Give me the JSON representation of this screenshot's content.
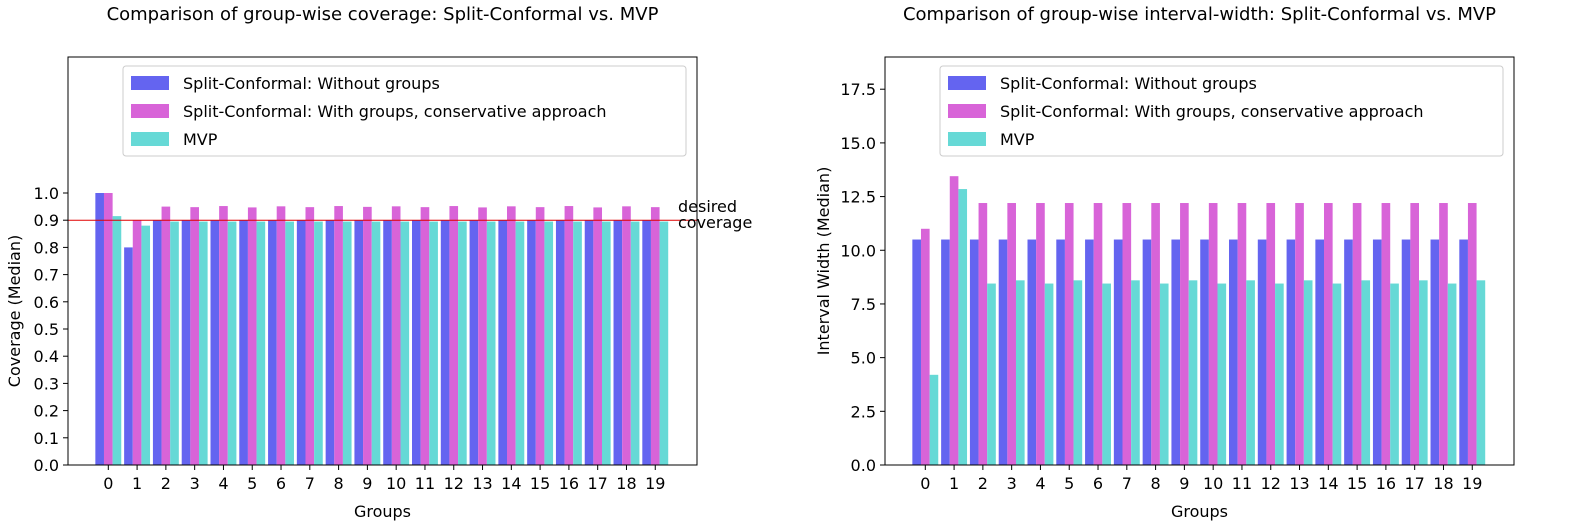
{
  "chart_data": [
    {
      "type": "bar",
      "title": "Comparison of group-wise coverage: Split-Conformal vs. MVP",
      "xlabel": "Groups",
      "ylabel": "Coverage (Median)",
      "categories": [
        "0",
        "1",
        "2",
        "3",
        "4",
        "5",
        "6",
        "7",
        "8",
        "9",
        "10",
        "11",
        "12",
        "13",
        "14",
        "15",
        "16",
        "17",
        "18",
        "19"
      ],
      "series": [
        {
          "name": "Split-Conformal: Without groups",
          "color": "#6464f0",
          "values": [
            1.0,
            0.8,
            0.9,
            0.9,
            0.9,
            0.9,
            0.9,
            0.9,
            0.9,
            0.9,
            0.9,
            0.9,
            0.9,
            0.9,
            0.9,
            0.9,
            0.9,
            0.9,
            0.9,
            0.9
          ]
        },
        {
          "name": "Split-Conformal: With groups, conservative approach",
          "color": "#d864d8",
          "values": [
            1.0,
            0.9,
            0.95,
            0.948,
            0.952,
            0.947,
            0.951,
            0.948,
            0.952,
            0.949,
            0.951,
            0.948,
            0.952,
            0.947,
            0.951,
            0.948,
            0.952,
            0.947,
            0.951,
            0.948
          ]
        },
        {
          "name": "MVP",
          "color": "#66d9d6",
          "values": [
            0.915,
            0.88,
            0.895,
            0.895,
            0.895,
            0.895,
            0.895,
            0.895,
            0.895,
            0.895,
            0.895,
            0.895,
            0.895,
            0.895,
            0.895,
            0.895,
            0.895,
            0.895,
            0.895,
            0.895
          ]
        }
      ],
      "ylim": [
        0,
        1.5
      ],
      "yticks": [
        {
          "value": 0,
          "label": "0.0"
        },
        {
          "value": 0.1,
          "label": "0.1"
        },
        {
          "value": 0.2,
          "label": "0.2"
        },
        {
          "value": 0.3,
          "label": "0.3"
        },
        {
          "value": 0.4,
          "label": "0.4"
        },
        {
          "value": 0.5,
          "label": "0.5"
        },
        {
          "value": 0.6,
          "label": "0.6"
        },
        {
          "value": 0.7,
          "label": "0.7"
        },
        {
          "value": 0.8,
          "label": "0.8"
        },
        {
          "value": 0.9,
          "label": "0.9"
        },
        {
          "value": 1.0,
          "label": "1.0"
        }
      ],
      "hline": {
        "value": 0.9,
        "label": "desired coverage",
        "color": "#e00000"
      },
      "legend": "upper center"
    },
    {
      "type": "bar",
      "title": "Comparison of group-wise interval-width: Split-Conformal vs. MVP",
      "xlabel": "Groups",
      "ylabel": "Interval Width (Median)",
      "categories": [
        "0",
        "1",
        "2",
        "3",
        "4",
        "5",
        "6",
        "7",
        "8",
        "9",
        "10",
        "11",
        "12",
        "13",
        "14",
        "15",
        "16",
        "17",
        "18",
        "19"
      ],
      "series": [
        {
          "name": "Split-Conformal: Without groups",
          "color": "#6464f0",
          "values": [
            10.5,
            10.5,
            10.5,
            10.5,
            10.5,
            10.5,
            10.5,
            10.5,
            10.5,
            10.5,
            10.5,
            10.5,
            10.5,
            10.5,
            10.5,
            10.5,
            10.5,
            10.5,
            10.5,
            10.5
          ]
        },
        {
          "name": "Split-Conformal: With groups, conservative approach",
          "color": "#d864d8",
          "values": [
            11.0,
            13.45,
            12.2,
            12.2,
            12.2,
            12.2,
            12.2,
            12.2,
            12.2,
            12.2,
            12.2,
            12.2,
            12.2,
            12.2,
            12.2,
            12.2,
            12.2,
            12.2,
            12.2,
            12.2
          ]
        },
        {
          "name": "MVP",
          "color": "#66d9d6",
          "values": [
            4.2,
            12.85,
            8.45,
            8.6,
            8.45,
            8.6,
            8.45,
            8.6,
            8.45,
            8.6,
            8.45,
            8.6,
            8.45,
            8.6,
            8.45,
            8.6,
            8.45,
            8.6,
            8.45,
            8.6
          ]
        }
      ],
      "ylim": [
        0,
        19
      ],
      "yticks": [
        {
          "value": 0,
          "label": "0.0"
        },
        {
          "value": 2.5,
          "label": "2.5"
        },
        {
          "value": 5,
          "label": "5.0"
        },
        {
          "value": 7.5,
          "label": "7.5"
        },
        {
          "value": 10,
          "label": "10.0"
        },
        {
          "value": 12.5,
          "label": "12.5"
        },
        {
          "value": 15,
          "label": "15.0"
        },
        {
          "value": 17.5,
          "label": "17.5"
        }
      ],
      "legend": "upper center"
    }
  ]
}
